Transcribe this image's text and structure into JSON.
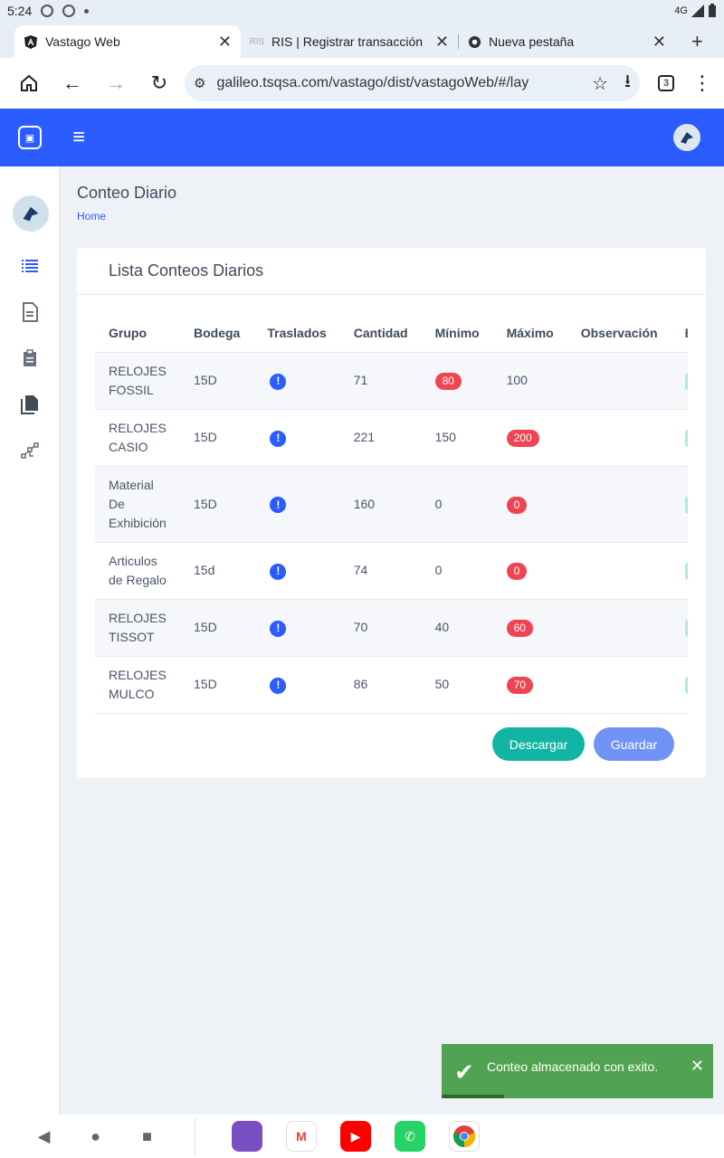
{
  "status_bar": {
    "time": "5:24",
    "network": "4G"
  },
  "tabs": [
    {
      "label": "Vastago Web",
      "active": true
    },
    {
      "label": "RIS | Registrar transacción",
      "active": false,
      "prefix": "RIS"
    },
    {
      "label": "Nueva pestaña",
      "active": false
    }
  ],
  "address_bar": {
    "url": "galileo.tsqsa.com/vastago/dist/vastagoWeb/#/lay",
    "tab_count": "3"
  },
  "page": {
    "title": "Conteo Diario",
    "breadcrumb": "Home"
  },
  "card": {
    "title": "Lista Conteos Diarios"
  },
  "table": {
    "headers": [
      "Grupo",
      "Bodega",
      "Traslados",
      "Cantidad",
      "Mínimo",
      "Máximo",
      "Observación",
      "Es"
    ],
    "rows": [
      {
        "grupo": "RELOJES FOSSIL",
        "bodega": "15D",
        "cantidad": "71",
        "minimo": "80",
        "maximo": "100",
        "min_alert": true,
        "max_alert": false,
        "estado": "V"
      },
      {
        "grupo": "RELOJES CASIO",
        "bodega": "15D",
        "cantidad": "221",
        "minimo": "150",
        "maximo": "200",
        "min_alert": false,
        "max_alert": true,
        "estado": "V"
      },
      {
        "grupo": "Material De Exhibición",
        "bodega": "15D",
        "cantidad": "160",
        "minimo": "0",
        "maximo": "0",
        "min_alert": false,
        "max_alert": true,
        "estado": "V"
      },
      {
        "grupo": "Articulos de Regalo",
        "bodega": "15d",
        "cantidad": "74",
        "minimo": "0",
        "maximo": "0",
        "min_alert": false,
        "max_alert": true,
        "estado": "V"
      },
      {
        "grupo": "RELOJES TISSOT",
        "bodega": "15D",
        "cantidad": "70",
        "minimo": "40",
        "maximo": "60",
        "min_alert": false,
        "max_alert": true,
        "estado": "V"
      },
      {
        "grupo": "RELOJES MULCO",
        "bodega": "15D",
        "cantidad": "86",
        "minimo": "50",
        "maximo": "70",
        "min_alert": false,
        "max_alert": true,
        "estado": "V"
      }
    ]
  },
  "buttons": {
    "download": "Descargar",
    "save": "Guardar"
  },
  "toast": {
    "message": "Conteo almacenado con exito.",
    "progress": 0.23
  },
  "colors": {
    "primary": "#2b5cff",
    "teal": "#12b5a5",
    "danger": "#ef4452",
    "success": "#51a351"
  }
}
